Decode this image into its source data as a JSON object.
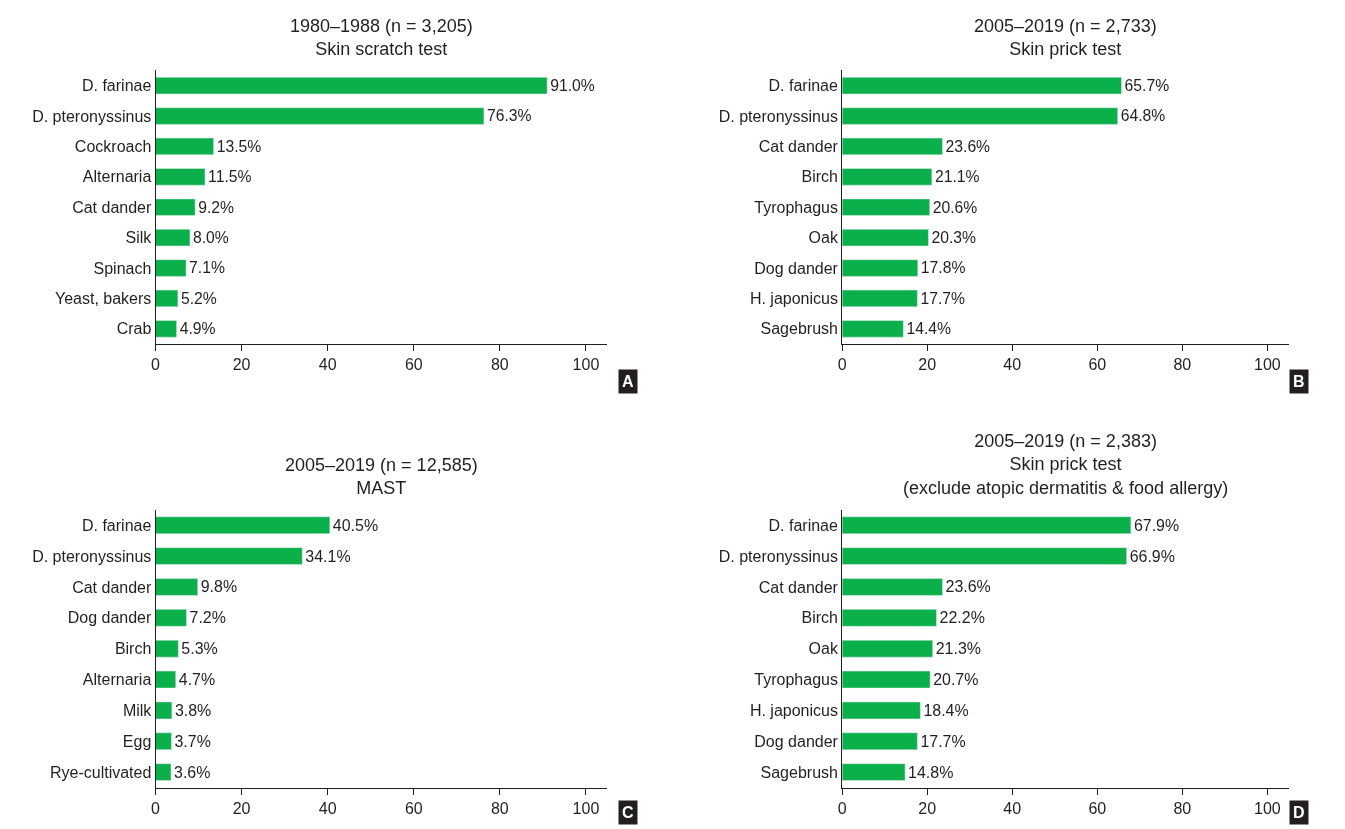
{
  "chart_data": [
    {
      "type": "bar",
      "orientation": "horizontal",
      "title": "1980–1988 (n = 3,205)",
      "subtitle": "Skin scratch test",
      "categories": [
        "D. farinae",
        "D. pteronyssinus",
        "Cockroach",
        "Alternaria",
        "Cat dander",
        "Silk",
        "Spinach",
        "Yeast, bakers",
        "Crab"
      ],
      "values": [
        91.0,
        76.3,
        13.5,
        11.5,
        9.2,
        8.0,
        7.1,
        5.2,
        4.9
      ],
      "value_labels": [
        "91.0%",
        "76.3%",
        "13.5%",
        "11.5%",
        "9.2%",
        "8.0%",
        "7.1%",
        "5.2%",
        "4.9%"
      ],
      "color": "#0cb04a",
      "xlim": [
        0,
        105
      ],
      "xticks": [
        0,
        20,
        40,
        60,
        80,
        100
      ],
      "annotations": [
        "A"
      ]
    },
    {
      "type": "bar",
      "orientation": "horizontal",
      "title": "2005–2019 (n = 2,733)",
      "subtitle": "Skin prick test",
      "categories": [
        "D. farinae",
        "D. pteronyssinus",
        "Cat dander",
        "Birch",
        "Tyrophagus",
        "Oak",
        "Dog dander",
        "H. japonicus",
        "Sagebrush"
      ],
      "values": [
        65.7,
        64.8,
        23.6,
        21.1,
        20.6,
        20.3,
        17.8,
        17.7,
        14.4
      ],
      "value_labels": [
        "65.7%",
        "64.8%",
        "23.6%",
        "21.1%",
        "20.6%",
        "20.3%",
        "17.8%",
        "17.7%",
        "14.4%"
      ],
      "color": "#0cb04a",
      "xlim": [
        0,
        105
      ],
      "xticks": [
        0,
        20,
        40,
        60,
        80,
        100
      ],
      "annotations": [
        "B"
      ]
    },
    {
      "type": "bar",
      "orientation": "horizontal",
      "title": "2005–2019 (n = 12,585)",
      "subtitle": "MAST",
      "categories": [
        "D. farinae",
        "D. pteronyssinus",
        "Cat dander",
        "Dog dander",
        "Birch",
        "Alternaria",
        "Milk",
        "Egg",
        "Rye-cultivated"
      ],
      "values": [
        40.5,
        34.1,
        9.8,
        7.2,
        5.3,
        4.7,
        3.8,
        3.7,
        3.6
      ],
      "value_labels": [
        "40.5%",
        "34.1%",
        "9.8%",
        "7.2%",
        "5.3%",
        "4.7%",
        "3.8%",
        "3.7%",
        "3.6%"
      ],
      "color": "#0cb04a",
      "xlim": [
        0,
        105
      ],
      "xticks": [
        0,
        20,
        40,
        60,
        80,
        100
      ],
      "annotations": [
        "C"
      ]
    },
    {
      "type": "bar",
      "orientation": "horizontal",
      "title": "2005–2019 (n = 2,383)",
      "subtitle": "Skin prick test\n(exclude atopic dermatitis & food allergy)",
      "categories": [
        "D. farinae",
        "D. pteronyssinus",
        "Cat dander",
        "Birch",
        "Oak",
        "Tyrophagus",
        "H. japonicus",
        "Dog dander",
        "Sagebrush"
      ],
      "values": [
        67.9,
        66.9,
        23.6,
        22.2,
        21.3,
        20.7,
        18.4,
        17.7,
        14.8
      ],
      "value_labels": [
        "67.9%",
        "66.9%",
        "23.6%",
        "22.2%",
        "21.3%",
        "20.7%",
        "18.4%",
        "17.7%",
        "14.8%"
      ],
      "color": "#0cb04a",
      "xlim": [
        0,
        105
      ],
      "xticks": [
        0,
        20,
        40,
        60,
        80,
        100
      ],
      "annotations": [
        "D"
      ]
    }
  ]
}
